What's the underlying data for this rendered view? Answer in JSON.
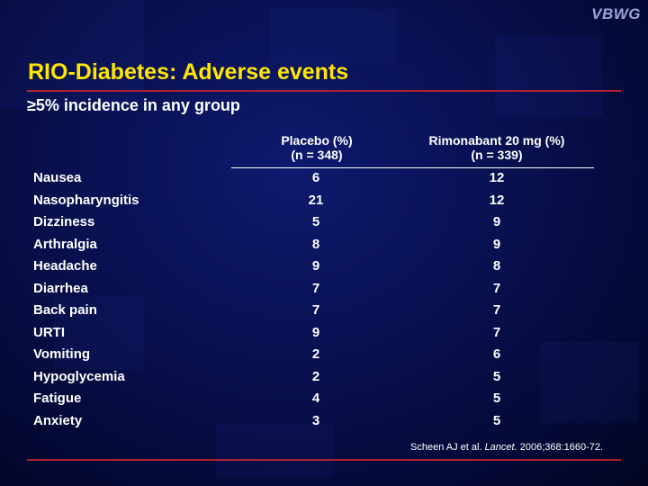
{
  "logo": "VBWG",
  "title": "RIO-Diabetes: Adverse events",
  "subtitle": "≥5% incidence in any group",
  "columns": [
    {
      "name": "Placebo (%)",
      "n": "(n = 348)"
    },
    {
      "name": "Rimonabant 20 mg (%)",
      "n": "(n = 339)"
    }
  ],
  "rows": [
    {
      "label": "Nausea",
      "placebo": "6",
      "rimonabant": "12"
    },
    {
      "label": "Nasopharyngitis",
      "placebo": "21",
      "rimonabant": "12"
    },
    {
      "label": "Dizziness",
      "placebo": "5",
      "rimonabant": "9"
    },
    {
      "label": "Arthralgia",
      "placebo": "8",
      "rimonabant": "9"
    },
    {
      "label": "Headache",
      "placebo": "9",
      "rimonabant": "8"
    },
    {
      "label": "Diarrhea",
      "placebo": "7",
      "rimonabant": "7"
    },
    {
      "label": "Back pain",
      "placebo": "7",
      "rimonabant": "7"
    },
    {
      "label": "URTI",
      "placebo": "9",
      "rimonabant": "7"
    },
    {
      "label": "Vomiting",
      "placebo": "2",
      "rimonabant": "6"
    },
    {
      "label": "Hypoglycemia",
      "placebo": "2",
      "rimonabant": "5"
    },
    {
      "label": "Fatigue",
      "placebo": "4",
      "rimonabant": "5"
    },
    {
      "label": "Anxiety",
      "placebo": "3",
      "rimonabant": "5"
    }
  ],
  "citation": {
    "authors": "Scheen AJ et al.",
    "journal": "Lancet.",
    "details": "2006;368:1660-72."
  },
  "colors": {
    "title": "#ffe600",
    "rule": "#b3202f",
    "background": "#08104f",
    "text": "#ffffff"
  }
}
